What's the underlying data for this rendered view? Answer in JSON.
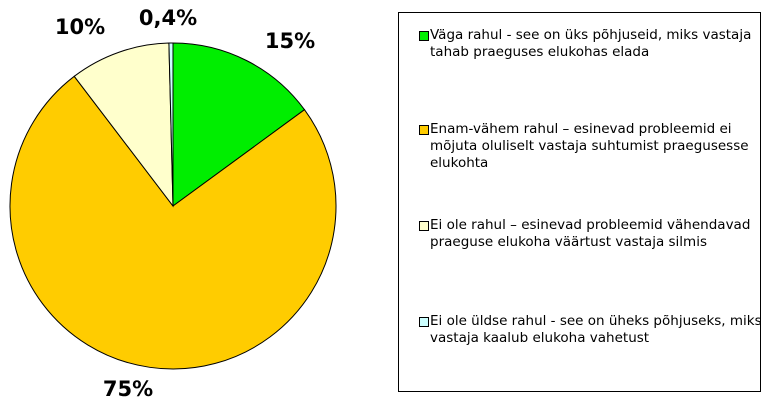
{
  "chart_data": {
    "type": "pie",
    "categories": [
      "Väga rahul - see on üks põhjuseid, miks vastaja tahab praeguses elukohas elada",
      "Enam-vähem rahul – esinevad probleemid ei mõjuta oluliselt vastaja suhtumist praegusesse elukohta",
      "Ei ole rahul – esinevad probleemid vähendavad praeguse elukoha väärtust vastaja silmis",
      "Ei ole üldse rahul - see on üheks põhjuseks, miks vastaja kaalub elukoha vahetust"
    ],
    "values": [
      15,
      75,
      10,
      0.4
    ],
    "value_labels": [
      "15%",
      "75%",
      "10%",
      "0,4%"
    ],
    "colors": [
      "#00ee00",
      "#ffcc00",
      "#ffffcc",
      "#ccffff"
    ]
  }
}
